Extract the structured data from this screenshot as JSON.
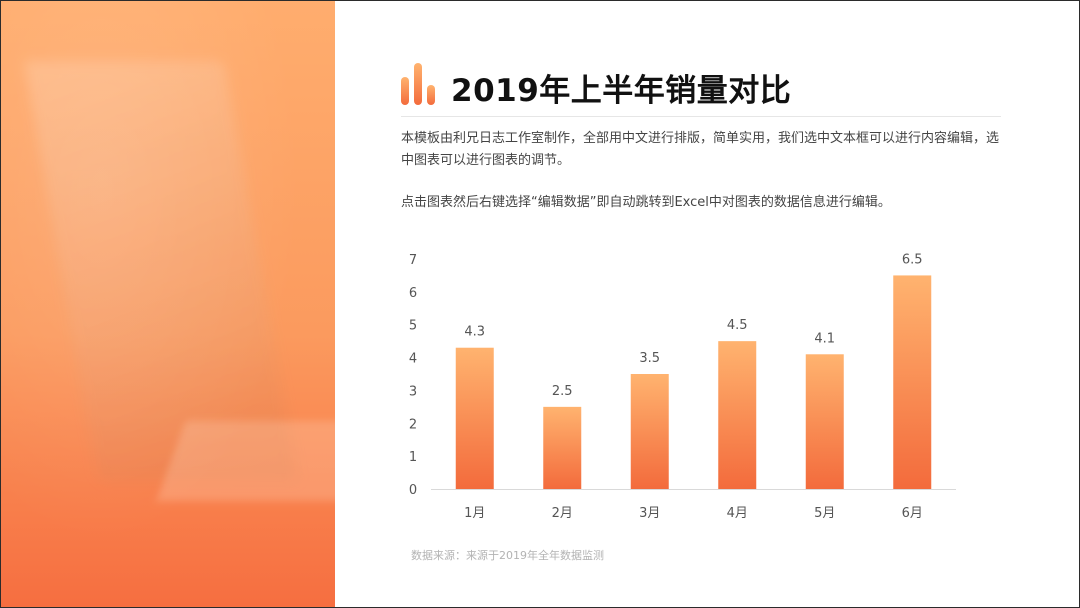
{
  "title": "2019年上半年销量对比",
  "paragraphs": [
    "本模板由利兄日志工作室制作，全部用中文进行排版，简单实用，我们选中文本框可以进行内容编辑，选中图表可以进行图表的调节。",
    "点击图表然后右键选择“编辑数据”即自动跳转到Excel中对图表的数据信息进行编辑。"
  ],
  "source": "数据来源：来源于2019年全年数据监测",
  "colors": {
    "accent_top": "#ffb36f",
    "accent_bottom": "#f36b3c",
    "axis_text": "#555555",
    "label_text": "#555555"
  },
  "chart_data": {
    "type": "bar",
    "categories": [
      "1月",
      "2月",
      "3月",
      "4月",
      "5月",
      "6月"
    ],
    "values": [
      4.3,
      2.5,
      3.5,
      4.5,
      4.1,
      6.5
    ],
    "data_labels": [
      "4.3",
      "2.5",
      "3.5",
      "4.5",
      "4.1",
      "6.5"
    ],
    "y_ticks": [
      "0",
      "1",
      "2",
      "3",
      "4",
      "5",
      "6",
      "7"
    ],
    "ylim": [
      0,
      7
    ],
    "grid": false,
    "legend": "none"
  }
}
